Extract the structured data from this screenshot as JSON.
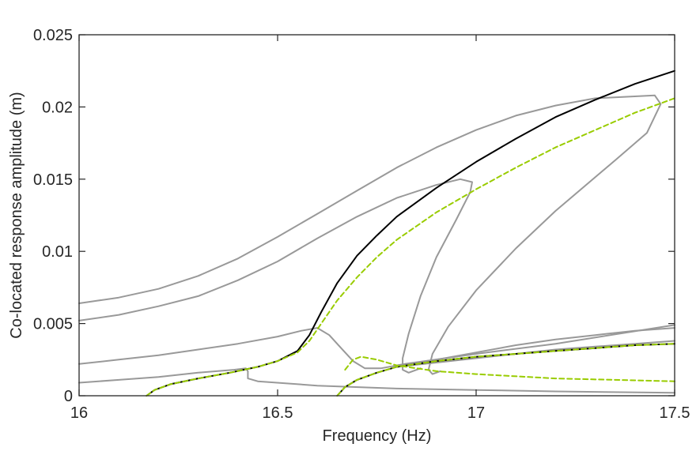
{
  "chart_data": {
    "type": "line",
    "title": "",
    "xlabel": "Frequency (Hz)",
    "ylabel": "Co-located response amplitude (m)",
    "xlim": [
      16,
      17.5
    ],
    "ylim": [
      0,
      0.025
    ],
    "xticks": [
      16,
      16.5,
      17,
      17.5
    ],
    "xtick_labels": [
      "16",
      "16.5",
      "17",
      "17.5"
    ],
    "yticks": [
      0,
      0.005,
      0.01,
      0.015,
      0.02,
      0.025
    ],
    "ytick_labels": [
      "0",
      "0.005",
      "0.01",
      "0.015",
      "0.02",
      "0.025"
    ],
    "grid": false,
    "series": [
      {
        "color": "#999999",
        "dash": "solid",
        "points": [
          [
            16,
            0.0064
          ],
          [
            16.1,
            0.0068
          ],
          [
            16.2,
            0.0074
          ],
          [
            16.3,
            0.0083
          ],
          [
            16.4,
            0.0095
          ],
          [
            16.5,
            0.011
          ],
          [
            16.6,
            0.0126
          ],
          [
            16.7,
            0.0142
          ],
          [
            16.8,
            0.0158
          ],
          [
            16.9,
            0.0172
          ],
          [
            17,
            0.0184
          ],
          [
            17.1,
            0.0194
          ],
          [
            17.2,
            0.0201
          ],
          [
            17.3,
            0.0206
          ],
          [
            17.45,
            0.0208
          ],
          [
            17.465,
            0.0202
          ],
          [
            17.43,
            0.0182
          ],
          [
            17.35,
            0.0163
          ],
          [
            17.2,
            0.0128
          ],
          [
            17.1,
            0.0102
          ],
          [
            17.0,
            0.0073
          ],
          [
            16.93,
            0.0048
          ],
          [
            16.89,
            0.0029
          ],
          [
            16.88,
            0.0018
          ],
          [
            16.89,
            0.0015
          ],
          [
            16.91,
            0.0017
          ]
        ]
      },
      {
        "color": "#999999",
        "dash": "solid",
        "points": [
          [
            16,
            0.0052
          ],
          [
            16.1,
            0.0056
          ],
          [
            16.2,
            0.0062
          ],
          [
            16.3,
            0.0069
          ],
          [
            16.4,
            0.008
          ],
          [
            16.5,
            0.0093
          ],
          [
            16.6,
            0.0109
          ],
          [
            16.7,
            0.0124
          ],
          [
            16.8,
            0.0137
          ],
          [
            16.9,
            0.0146
          ],
          [
            16.96,
            0.015
          ],
          [
            16.99,
            0.0148
          ],
          [
            16.985,
            0.0141
          ],
          [
            16.95,
            0.0122
          ],
          [
            16.9,
            0.0096
          ],
          [
            16.86,
            0.0069
          ],
          [
            16.83,
            0.0043
          ],
          [
            16.815,
            0.0026
          ],
          [
            16.815,
            0.0018
          ],
          [
            16.83,
            0.0016
          ],
          [
            16.86,
            0.0019
          ]
        ]
      },
      {
        "color": "#999999",
        "dash": "solid",
        "points": [
          [
            16,
            0.0022
          ],
          [
            16.1,
            0.0025
          ],
          [
            16.2,
            0.0028
          ],
          [
            16.3,
            0.0032
          ],
          [
            16.4,
            0.0036
          ],
          [
            16.5,
            0.0041
          ],
          [
            16.56,
            0.0045
          ],
          [
            16.6,
            0.0047
          ],
          [
            16.63,
            0.0042
          ],
          [
            16.66,
            0.0033
          ],
          [
            16.69,
            0.0024
          ],
          [
            16.72,
            0.0019
          ],
          [
            16.76,
            0.0019
          ],
          [
            16.82,
            0.0022
          ],
          [
            17,
            0.0029
          ],
          [
            17.2,
            0.0036
          ],
          [
            17.5,
            0.0049
          ]
        ]
      },
      {
        "color": "#999999",
        "dash": "solid",
        "points": [
          [
            16,
            0.0009
          ],
          [
            16.1,
            0.0011
          ],
          [
            16.2,
            0.0013
          ],
          [
            16.3,
            0.0016
          ],
          [
            16.39,
            0.0018
          ],
          [
            16.42,
            0.0019
          ],
          [
            16.425,
            0.0017
          ],
          [
            16.425,
            0.0012
          ],
          [
            16.45,
            0.001
          ],
          [
            16.6,
            0.0007
          ],
          [
            16.8,
            0.0005
          ],
          [
            17,
            0.0004
          ],
          [
            17.2,
            0.0003
          ],
          [
            17.5,
            0.0002
          ]
        ]
      },
      {
        "color": "#999999",
        "dash": "solid",
        "points": [
          [
            16.8,
            0.0021
          ],
          [
            16.9,
            0.0025
          ],
          [
            17,
            0.003
          ],
          [
            17.1,
            0.0035
          ],
          [
            17.2,
            0.0039
          ],
          [
            17.3,
            0.0042
          ],
          [
            17.4,
            0.0045
          ],
          [
            17.5,
            0.0047
          ]
        ]
      },
      {
        "color": "#999999",
        "dash": "solid",
        "points": [
          [
            16.8,
            0.002
          ],
          [
            16.9,
            0.0023
          ],
          [
            17,
            0.0026
          ],
          [
            17.1,
            0.0029
          ],
          [
            17.2,
            0.0032
          ],
          [
            17.3,
            0.0034
          ],
          [
            17.4,
            0.0036
          ],
          [
            17.5,
            0.0038
          ]
        ]
      },
      {
        "color": "#000000",
        "dash": "solid",
        "points": [
          [
            16.17,
            0
          ],
          [
            16.19,
            0.0004
          ],
          [
            16.23,
            0.0008
          ],
          [
            16.3,
            0.0012
          ],
          [
            16.38,
            0.0016
          ],
          [
            16.45,
            0.002
          ],
          [
            16.5,
            0.0024
          ],
          [
            16.55,
            0.0031
          ],
          [
            16.58,
            0.0042
          ],
          [
            16.61,
            0.0058
          ],
          [
            16.65,
            0.0078
          ],
          [
            16.7,
            0.0097
          ],
          [
            16.75,
            0.0111
          ],
          [
            16.8,
            0.0124
          ],
          [
            16.9,
            0.0144
          ],
          [
            17,
            0.0162
          ],
          [
            17.1,
            0.0178
          ],
          [
            17.2,
            0.0193
          ],
          [
            17.3,
            0.0205
          ],
          [
            17.4,
            0.0216
          ],
          [
            17.5,
            0.0225
          ]
        ]
      },
      {
        "color": "#000000",
        "dash": "solid",
        "points": [
          [
            16.65,
            0
          ],
          [
            16.67,
            0.0006
          ],
          [
            16.7,
            0.0011
          ],
          [
            16.75,
            0.0016
          ],
          [
            16.8,
            0.002
          ],
          [
            16.9,
            0.0024
          ],
          [
            17,
            0.0027
          ],
          [
            17.1,
            0.0029
          ],
          [
            17.2,
            0.0031
          ],
          [
            17.3,
            0.0033
          ],
          [
            17.4,
            0.0035
          ],
          [
            17.5,
            0.0036
          ]
        ]
      },
      {
        "color": "#99cc00",
        "dash": "dashed",
        "points": [
          [
            16.17,
            0
          ],
          [
            16.19,
            0.0004
          ],
          [
            16.23,
            0.0008
          ],
          [
            16.3,
            0.0012
          ],
          [
            16.38,
            0.0016
          ],
          [
            16.45,
            0.002
          ],
          [
            16.5,
            0.0024
          ],
          [
            16.55,
            0.003
          ],
          [
            16.58,
            0.0038
          ],
          [
            16.61,
            0.005
          ],
          [
            16.65,
            0.0066
          ],
          [
            16.7,
            0.0082
          ],
          [
            16.75,
            0.0096
          ],
          [
            16.8,
            0.0108
          ],
          [
            16.9,
            0.0127
          ],
          [
            17,
            0.0143
          ],
          [
            17.1,
            0.0158
          ],
          [
            17.2,
            0.0172
          ],
          [
            17.3,
            0.0184
          ],
          [
            17.4,
            0.0196
          ],
          [
            17.5,
            0.0206
          ]
        ]
      },
      {
        "color": "#99cc00",
        "dash": "dashed",
        "points": [
          [
            16.67,
            0.0018
          ],
          [
            16.69,
            0.0025
          ],
          [
            16.71,
            0.0027
          ],
          [
            16.75,
            0.0025
          ],
          [
            16.8,
            0.0021
          ],
          [
            16.9,
            0.0017
          ],
          [
            17,
            0.0015
          ],
          [
            17.2,
            0.0012
          ],
          [
            17.5,
            0.001
          ]
        ]
      },
      {
        "color": "#99cc00",
        "dash": "dashed",
        "points": [
          [
            16.65,
            0
          ],
          [
            16.67,
            0.0006
          ],
          [
            16.7,
            0.0011
          ],
          [
            16.75,
            0.0016
          ],
          [
            16.8,
            0.002
          ],
          [
            16.9,
            0.0024
          ],
          [
            17,
            0.0027
          ],
          [
            17.1,
            0.0029
          ],
          [
            17.2,
            0.0031
          ],
          [
            17.3,
            0.0033
          ],
          [
            17.4,
            0.0035
          ],
          [
            17.5,
            0.0036
          ]
        ]
      }
    ]
  }
}
